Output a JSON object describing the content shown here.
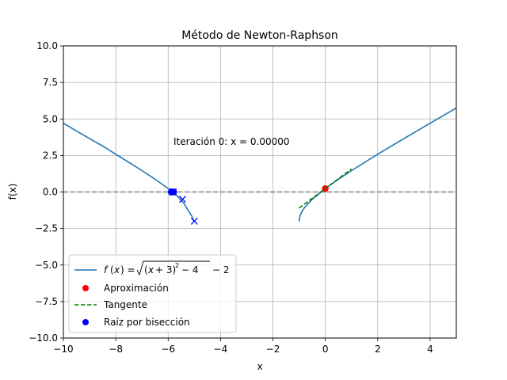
{
  "chart_data": {
    "type": "line",
    "title": "Método de Newton-Raphson",
    "xlabel": "x",
    "ylabel": "f(x)",
    "xlim": [
      -10,
      5
    ],
    "ylim": [
      -10,
      10
    ],
    "xticks": [
      -10,
      -8,
      -6,
      -4,
      -2,
      0,
      2,
      4
    ],
    "yticks": [
      -10.0,
      -7.5,
      -5.0,
      -2.5,
      0.0,
      2.5,
      5.0,
      7.5,
      10.0
    ],
    "xtick_labels": [
      "−10",
      "−8",
      "−6",
      "−4",
      "−2",
      "0",
      "2",
      "4"
    ],
    "ytick_labels": [
      "−10.0",
      "−7.5",
      "−5.0",
      "−2.5",
      "0.0",
      "2.5",
      "5.0",
      "7.5",
      "10.0"
    ],
    "grid": true,
    "legend_position": "lower-left",
    "annotation": "Iteración 0: x = 0.00000",
    "series": [
      {
        "name": "f(x) = √((x+3)² − 4) − 2",
        "kind": "line",
        "color": "#1f77b4",
        "segments": [
          {
            "x": [
              -10,
              -9.5,
              -9,
              -8.5,
              -8,
              -7.5,
              -7,
              -6.5,
              -6,
              -5.8,
              -5.6,
              -5.4,
              -5.2,
              -5.1,
              -5.03,
              -5.0
            ],
            "y": [
              4.708,
              4.177,
              3.657,
              3.146,
              2.583,
              2.031,
              1.464,
              0.872,
              0.236,
              -0.051,
              -0.377,
              -0.778,
              -1.363,
              -1.64,
              -1.95,
              -2.0
            ]
          },
          {
            "x": [
              -1.0,
              -0.97,
              -0.9,
              -0.8,
              -0.5,
              0,
              0.5,
              1,
              2,
              3,
              4,
              5
            ],
            "y": [
              -2.0,
              -1.65,
              -1.36,
              -1.08,
              -0.5,
              0.236,
              0.872,
              1.464,
              2.583,
              3.657,
              4.708,
              5.746
            ]
          }
        ]
      },
      {
        "name": "Aproximación",
        "kind": "points",
        "color": "#ff0000",
        "x": [
          0
        ],
        "y": [
          0.236
        ]
      },
      {
        "name": "Tangente",
        "kind": "dashed-line",
        "color": "#008000",
        "x": [
          -1,
          1
        ],
        "y": [
          -1.106,
          1.578
        ]
      },
      {
        "name": "Raíz por bisección",
        "kind": "points",
        "color": "#0000ff",
        "x": [
          -5.85,
          -5.82,
          -5.79,
          -5.86,
          -5.88
        ],
        "y": [
          0.0,
          0.0,
          0.0,
          0.0,
          0.0
        ]
      },
      {
        "name": "",
        "kind": "x-markers",
        "color": "#0000ff",
        "x": [
          -5.0,
          -5.45,
          -5.8,
          -5.84
        ],
        "y": [
          -2.0,
          -0.5,
          0.0,
          0.0
        ]
      }
    ],
    "reference_line": {
      "y": 0,
      "color": "#808080",
      "style": "dashed"
    }
  }
}
